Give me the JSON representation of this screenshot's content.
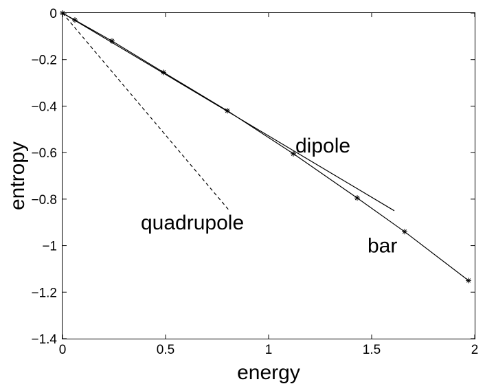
{
  "chart_data": {
    "type": "line",
    "title": "",
    "xlabel": "energy",
    "ylabel": "entropy",
    "xlim": [
      0,
      2
    ],
    "ylim": [
      -1.4,
      0
    ],
    "grid": false,
    "x_ticks": [
      0,
      0.5,
      1,
      1.5,
      2
    ],
    "x_tick_labels": [
      "0",
      "0.5",
      "1",
      "1.5",
      "2"
    ],
    "y_ticks": [
      0,
      -0.2,
      -0.4,
      -0.6,
      -0.8,
      -1,
      -1.2,
      -1.4
    ],
    "y_tick_labels": [
      "0",
      "−0.2",
      "−0.4",
      "−0.6",
      "−0.8",
      "−1",
      "−1.2",
      "−1.4"
    ],
    "series": [
      {
        "name": "bar",
        "line_style": "solid",
        "marker": "asterisk",
        "x": [
          0.0,
          0.06,
          0.24,
          0.49,
          0.8,
          1.12,
          1.43,
          1.66,
          1.97
        ],
        "y": [
          0.0,
          -0.03,
          -0.12,
          -0.255,
          -0.42,
          -0.605,
          -0.795,
          -0.94,
          -1.15
        ]
      },
      {
        "name": "dipole",
        "line_style": "solid",
        "marker": "none",
        "x": [
          0.0,
          1.61
        ],
        "y": [
          0.0,
          -0.85
        ]
      },
      {
        "name": "quadrupole",
        "line_style": "dashed",
        "marker": "none",
        "x": [
          0.0,
          0.81
        ],
        "y": [
          0.0,
          -0.85
        ]
      }
    ],
    "annotations": [
      {
        "text": "dipole",
        "x": 1.13,
        "y": -0.6
      },
      {
        "text": "quadrupole",
        "x": 0.38,
        "y": -0.93
      },
      {
        "text": "bar",
        "x": 1.48,
        "y": -1.03
      }
    ]
  }
}
